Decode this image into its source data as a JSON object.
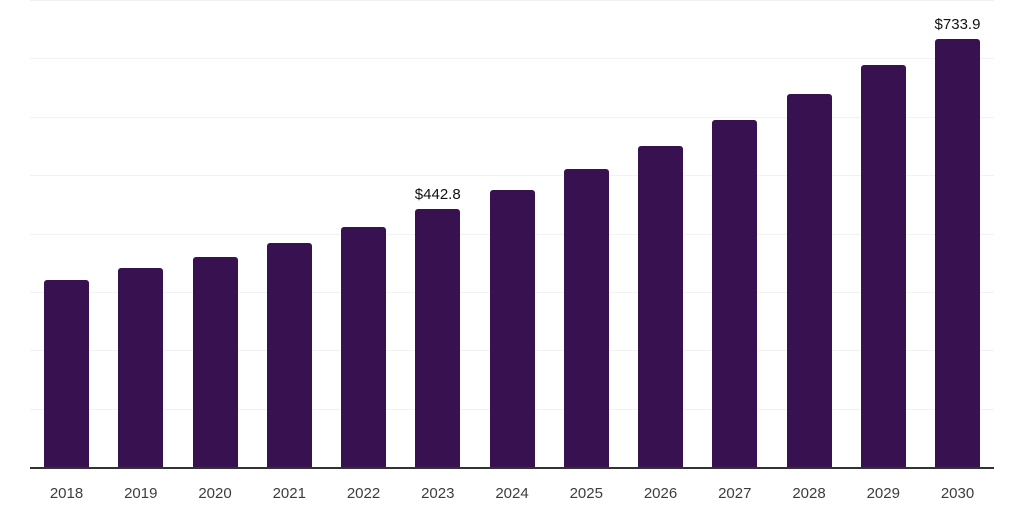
{
  "chart_data": {
    "type": "bar",
    "title": "",
    "xlabel": "",
    "ylabel": "",
    "categories": [
      "2018",
      "2019",
      "2020",
      "2021",
      "2022",
      "2023",
      "2024",
      "2025",
      "2026",
      "2027",
      "2028",
      "2029",
      "2030"
    ],
    "values": [
      319.6,
      340.1,
      360.6,
      384.5,
      411.8,
      442.8,
      474.9,
      510.8,
      550.0,
      594.4,
      639.0,
      688.2,
      733.9
    ],
    "value_labels": [
      null,
      null,
      null,
      null,
      null,
      "$442.8",
      null,
      null,
      null,
      null,
      null,
      null,
      "$733.9"
    ],
    "ylim": [
      0,
      800
    ],
    "grid": {
      "horizontal": true,
      "interval": 100,
      "color": "#f2f2f2"
    },
    "legend": "none",
    "colors": {
      "bar": "#371150",
      "axis_line": "#333333",
      "tick_label": "#3d3d3d",
      "value_label": "#111111",
      "background": "#ffffff"
    }
  }
}
